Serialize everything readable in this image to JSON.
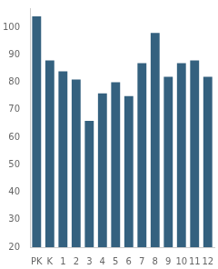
{
  "chart_data": {
    "type": "bar",
    "categories": [
      "PK",
      "K",
      "1",
      "2",
      "3",
      "4",
      "5",
      "6",
      "7",
      "8",
      "9",
      "10",
      "11",
      "12"
    ],
    "values": [
      104,
      88,
      84,
      81,
      66,
      76,
      80,
      75,
      87,
      98,
      82,
      87,
      88,
      82
    ],
    "color": "#34617f",
    "ylim": [
      20,
      107
    ],
    "yticks": [
      20,
      30,
      40,
      50,
      60,
      70,
      80,
      90,
      100
    ],
    "grid": false
  }
}
